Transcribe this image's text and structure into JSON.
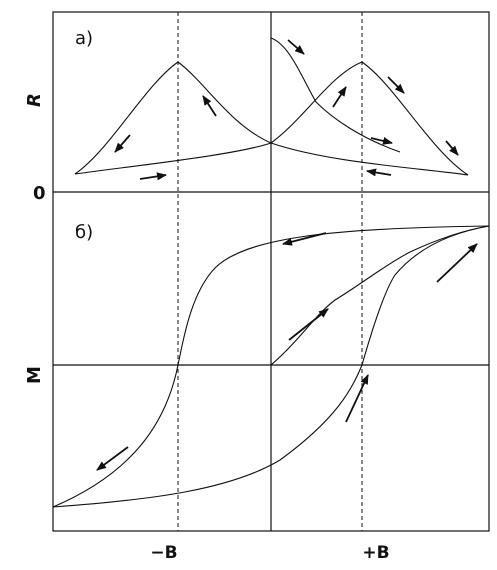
{
  "panels": {
    "top": {
      "label": "a)",
      "ylabel": "R"
    },
    "bottom": {
      "label": "б)",
      "ylabel": "M"
    }
  },
  "origin_label": "0",
  "xticks": {
    "neg": "−B",
    "pos": "+B"
  },
  "colors": {
    "line": "#111111",
    "background": "#ffffff"
  }
}
